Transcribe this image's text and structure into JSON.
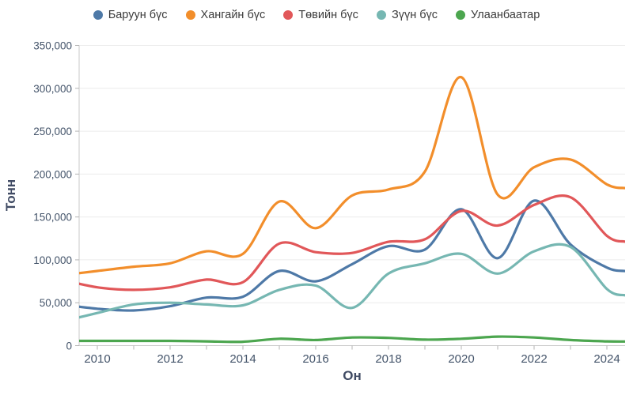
{
  "style": {
    "background": "#ffffff",
    "axis_text_color": "#44546a",
    "axis_title_color": "#3f4a63",
    "legend_text_color": "#3b3b3b",
    "grid_color": "#ececec",
    "spine_color": "#c9c9c9",
    "tick_color": "#b5b5b5"
  },
  "chart_data": {
    "type": "line",
    "smooth": true,
    "grid": "horizontal-only",
    "legend_position": "top-center",
    "xlabel": "Он",
    "ylabel": "Тонн",
    "ylim": [
      0,
      350000
    ],
    "x_visible_range": [
      2009.5,
      2024.5
    ],
    "x": [
      2009,
      2010,
      2011,
      2012,
      2013,
      2014,
      2015,
      2016,
      2017,
      2018,
      2019,
      2020,
      2021,
      2022,
      2023,
      2024
    ],
    "xtick_years": [
      2010,
      2011,
      2012,
      2013,
      2014,
      2015,
      2016,
      2017,
      2018,
      2019,
      2020,
      2021,
      2022,
      2023,
      2024
    ],
    "xtick_labeled_years": [
      2010,
      2012,
      2014,
      2016,
      2018,
      2020,
      2022,
      2024
    ],
    "xtick_labels": [
      "2010",
      "2012",
      "2014",
      "2016",
      "2018",
      "2020",
      "2022",
      "2024"
    ],
    "ytick_values": [
      0,
      50000,
      100000,
      150000,
      200000,
      250000,
      300000,
      350000
    ],
    "ytick_labels": [
      "0",
      "50,000",
      "100,000",
      "150,000",
      "200,000",
      "250,000",
      "300,000",
      "350,000"
    ],
    "series": [
      {
        "name": "Баруун бүс",
        "color": "#4e79a7",
        "values": [
          48000,
          43000,
          41000,
          46000,
          56000,
          57000,
          87000,
          75000,
          95000,
          116000,
          112000,
          159000,
          102000,
          169000,
          118000,
          91000
        ]
      },
      {
        "name": "Хангайн бүс",
        "color": "#f28e2b",
        "values": [
          82000,
          87000,
          92000,
          96000,
          110000,
          107000,
          168000,
          137000,
          175000,
          182000,
          203000,
          313000,
          176000,
          208000,
          217000,
          188000
        ]
      },
      {
        "name": "Төвийн бүс",
        "color": "#e15759",
        "values": [
          77000,
          68000,
          65000,
          68000,
          77000,
          74000,
          119000,
          109000,
          108000,
          121000,
          124000,
          157000,
          140000,
          164000,
          173000,
          128000
        ]
      },
      {
        "name": "Зүүн бүс",
        "color": "#76b7b2",
        "values": [
          28000,
          38000,
          48000,
          50000,
          48000,
          47000,
          65000,
          70000,
          44000,
          84000,
          96000,
          107000,
          84000,
          110000,
          115000,
          66000
        ]
      },
      {
        "name": "Улаанбаатар",
        "color": "#4ca64f",
        "values": [
          5500,
          5500,
          5500,
          5500,
          5000,
          4500,
          8000,
          6500,
          9500,
          9000,
          7000,
          8000,
          10500,
          9500,
          6500,
          5000
        ]
      }
    ]
  }
}
